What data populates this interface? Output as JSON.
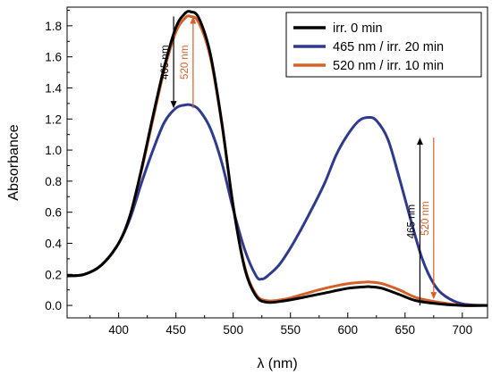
{
  "chart_data": {
    "type": "line",
    "xlabel": "λ (nm)",
    "ylabel": "Absorbance",
    "xlim": [
      355,
      722
    ],
    "ylim": [
      -0.08,
      1.92
    ],
    "x_ticks": [
      400,
      450,
      500,
      550,
      600,
      650,
      700
    ],
    "y_ticks": [
      0.0,
      0.2,
      0.4,
      0.6,
      0.8,
      1.0,
      1.2,
      1.4,
      1.6,
      1.8
    ],
    "x_tick_labels": [
      "400",
      "450",
      "500",
      "550",
      "600",
      "650",
      "700"
    ],
    "y_tick_labels": [
      "0.0",
      "0.2",
      "0.4",
      "0.6",
      "0.8",
      "1.0",
      "1.2",
      "1.4",
      "1.6",
      "1.8"
    ],
    "grid": false,
    "legend_position": "top-right",
    "series": [
      {
        "name": "irr. 0 min",
        "color": "#000000",
        "x": [
          355,
          370,
          385,
          400,
          410,
          420,
          430,
          440,
          450,
          458,
          463,
          470,
          480,
          490,
          500,
          510,
          520,
          530,
          545,
          560,
          580,
          600,
          615,
          620,
          630,
          645,
          660,
          680,
          700,
          722
        ],
        "y": [
          0.19,
          0.2,
          0.26,
          0.4,
          0.58,
          0.88,
          1.22,
          1.54,
          1.79,
          1.88,
          1.89,
          1.85,
          1.62,
          1.18,
          0.64,
          0.24,
          0.06,
          0.02,
          0.03,
          0.05,
          0.08,
          0.11,
          0.12,
          0.12,
          0.11,
          0.07,
          0.03,
          0.01,
          0.0,
          0.0
        ]
      },
      {
        "name": "465 nm / irr. 20 min",
        "color": "#2e3a8c",
        "x": [
          355,
          370,
          385,
          400,
          410,
          420,
          430,
          440,
          450,
          458,
          463,
          470,
          480,
          490,
          500,
          510,
          520,
          525,
          530,
          540,
          550,
          560,
          570,
          580,
          590,
          600,
          610,
          618,
          625,
          635,
          645,
          655,
          665,
          675,
          685,
          700,
          722
        ],
        "y": [
          0.19,
          0.2,
          0.26,
          0.4,
          0.56,
          0.79,
          1.0,
          1.18,
          1.27,
          1.29,
          1.29,
          1.26,
          1.14,
          0.92,
          0.62,
          0.36,
          0.19,
          0.17,
          0.19,
          0.26,
          0.37,
          0.5,
          0.64,
          0.79,
          0.97,
          1.1,
          1.19,
          1.21,
          1.19,
          1.07,
          0.82,
          0.55,
          0.3,
          0.14,
          0.06,
          0.01,
          0.0
        ]
      },
      {
        "name": "520 nm / irr. 10 min",
        "color": "#d4602a",
        "x": [
          355,
          370,
          385,
          400,
          410,
          420,
          430,
          440,
          450,
          458,
          463,
          470,
          480,
          490,
          500,
          510,
          520,
          530,
          545,
          560,
          580,
          600,
          615,
          620,
          630,
          645,
          660,
          680,
          700,
          722
        ],
        "y": [
          0.19,
          0.2,
          0.26,
          0.4,
          0.58,
          0.87,
          1.2,
          1.52,
          1.76,
          1.85,
          1.86,
          1.82,
          1.6,
          1.17,
          0.64,
          0.25,
          0.07,
          0.03,
          0.04,
          0.07,
          0.11,
          0.14,
          0.15,
          0.15,
          0.14,
          0.1,
          0.05,
          0.02,
          0.0,
          0.0
        ]
      }
    ],
    "annotations": [
      {
        "text": "465 nm",
        "color": "#000000",
        "x": 448,
        "y_from": 1.86,
        "y_to": 1.27,
        "direction": "down"
      },
      {
        "text": "520 nm",
        "color": "#d4602a",
        "x": 465,
        "y_from": 1.27,
        "y_to": 1.86,
        "direction": "up"
      },
      {
        "text": "465 nm",
        "color": "#000000",
        "x": 663,
        "y_from": 0.0,
        "y_to": 1.08,
        "direction": "up"
      },
      {
        "text": "520 nm",
        "color": "#d4602a",
        "x": 675,
        "y_from": 1.08,
        "y_to": 0.04,
        "direction": "down"
      }
    ]
  }
}
